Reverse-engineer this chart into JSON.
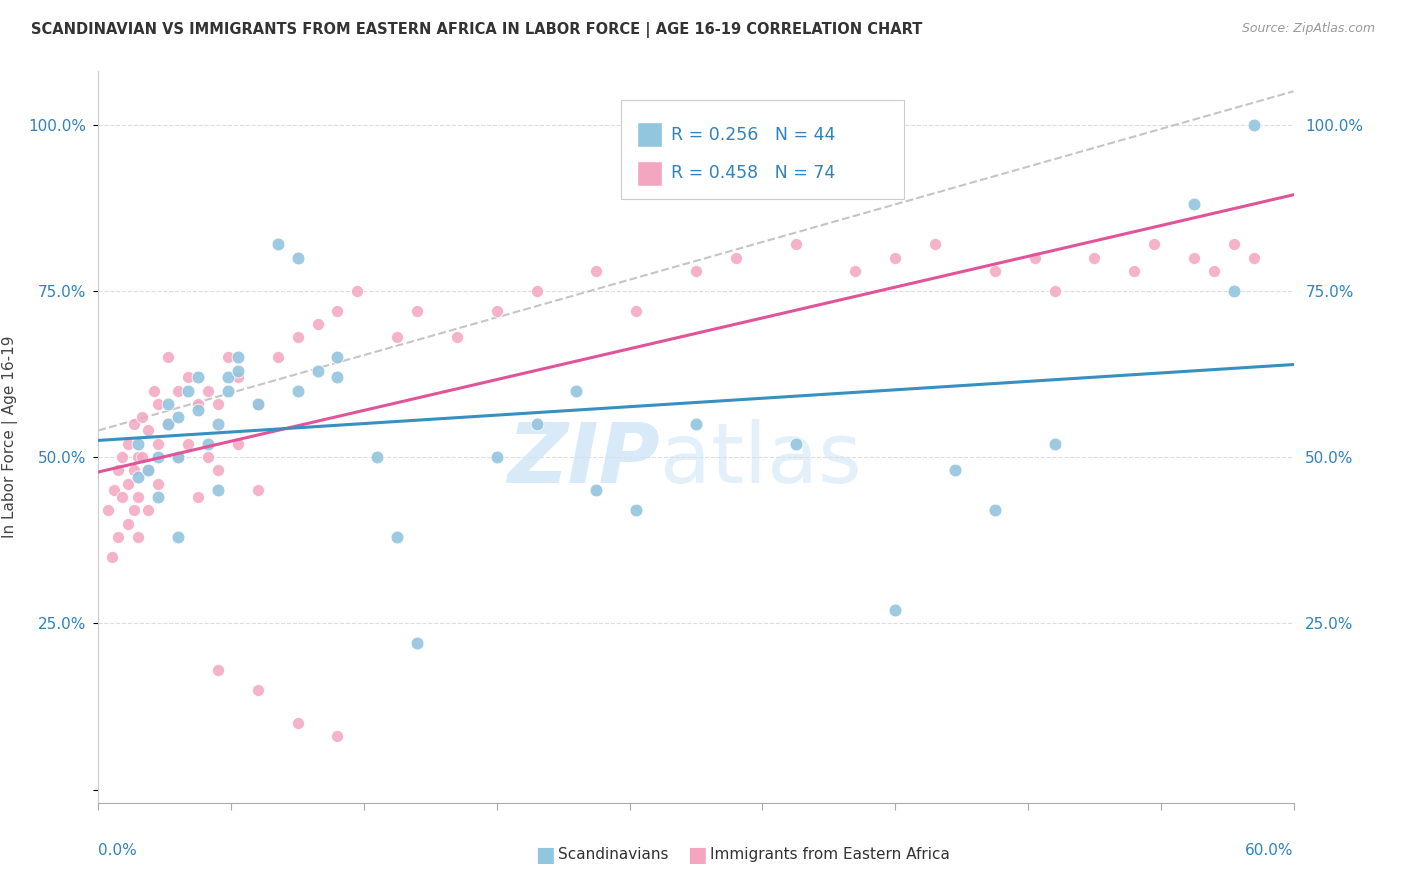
{
  "title": "SCANDINAVIAN VS IMMIGRANTS FROM EASTERN AFRICA IN LABOR FORCE | AGE 16-19 CORRELATION CHART",
  "source": "Source: ZipAtlas.com",
  "ylabel": "In Labor Force | Age 16-19",
  "xlim": [
    0.0,
    0.6
  ],
  "ylim": [
    -0.02,
    1.08
  ],
  "blue_r": "0.256",
  "pink_r": "0.458",
  "blue_n": "44",
  "pink_n": "74",
  "blue_color": "#92c5de",
  "pink_color": "#f4a6c0",
  "blue_line_color": "#3690c0",
  "pink_line_color": "#e0559a",
  "ref_line_color": "#bbbbbb",
  "text_blue": "#3182bd",
  "grid_color": "#dddddd",
  "tick_color": "#aaaaaa",
  "title_color": "#333333",
  "bg_color": "#ffffff",
  "watermark_color": "#cce4f5",
  "yticks": [
    0.0,
    0.25,
    0.5,
    0.75,
    1.0
  ],
  "ytick_labels": [
    "",
    "25.0%",
    "50.0%",
    "75.0%",
    "100.0%"
  ],
  "blue_scatter_x": [
    0.02,
    0.02,
    0.025,
    0.03,
    0.03,
    0.035,
    0.035,
    0.04,
    0.04,
    0.04,
    0.045,
    0.05,
    0.05,
    0.055,
    0.06,
    0.06,
    0.065,
    0.065,
    0.07,
    0.07,
    0.08,
    0.09,
    0.1,
    0.1,
    0.11,
    0.12,
    0.12,
    0.14,
    0.15,
    0.16,
    0.2,
    0.22,
    0.24,
    0.25,
    0.27,
    0.3,
    0.35,
    0.4,
    0.43,
    0.45,
    0.48,
    0.55,
    0.57,
    0.58
  ],
  "blue_scatter_y": [
    0.47,
    0.52,
    0.48,
    0.5,
    0.44,
    0.55,
    0.58,
    0.56,
    0.5,
    0.38,
    0.6,
    0.62,
    0.57,
    0.52,
    0.55,
    0.45,
    0.6,
    0.62,
    0.65,
    0.63,
    0.58,
    0.82,
    0.8,
    0.6,
    0.63,
    0.62,
    0.65,
    0.5,
    0.38,
    0.22,
    0.5,
    0.55,
    0.6,
    0.45,
    0.42,
    0.55,
    0.52,
    0.27,
    0.48,
    0.42,
    0.52,
    0.88,
    0.75,
    1.0
  ],
  "pink_scatter_x": [
    0.005,
    0.007,
    0.008,
    0.01,
    0.01,
    0.012,
    0.012,
    0.015,
    0.015,
    0.015,
    0.018,
    0.018,
    0.018,
    0.02,
    0.02,
    0.02,
    0.022,
    0.022,
    0.025,
    0.025,
    0.025,
    0.028,
    0.03,
    0.03,
    0.03,
    0.035,
    0.035,
    0.04,
    0.04,
    0.045,
    0.045,
    0.05,
    0.05,
    0.055,
    0.055,
    0.06,
    0.06,
    0.065,
    0.07,
    0.07,
    0.08,
    0.08,
    0.09,
    0.1,
    0.11,
    0.12,
    0.13,
    0.15,
    0.16,
    0.18,
    0.2,
    0.22,
    0.25,
    0.27,
    0.3,
    0.32,
    0.35,
    0.38,
    0.4,
    0.42,
    0.45,
    0.47,
    0.48,
    0.5,
    0.52,
    0.53,
    0.55,
    0.56,
    0.57,
    0.58,
    0.06,
    0.08,
    0.1,
    0.12
  ],
  "pink_scatter_y": [
    0.42,
    0.35,
    0.45,
    0.48,
    0.38,
    0.5,
    0.44,
    0.52,
    0.46,
    0.4,
    0.55,
    0.48,
    0.42,
    0.5,
    0.44,
    0.38,
    0.56,
    0.5,
    0.54,
    0.48,
    0.42,
    0.6,
    0.58,
    0.52,
    0.46,
    0.65,
    0.55,
    0.6,
    0.5,
    0.62,
    0.52,
    0.58,
    0.44,
    0.6,
    0.5,
    0.58,
    0.48,
    0.65,
    0.62,
    0.52,
    0.58,
    0.45,
    0.65,
    0.68,
    0.7,
    0.72,
    0.75,
    0.68,
    0.72,
    0.68,
    0.72,
    0.75,
    0.78,
    0.72,
    0.78,
    0.8,
    0.82,
    0.78,
    0.8,
    0.82,
    0.78,
    0.8,
    0.75,
    0.8,
    0.78,
    0.82,
    0.8,
    0.78,
    0.82,
    0.8,
    0.18,
    0.15,
    0.1,
    0.08
  ]
}
